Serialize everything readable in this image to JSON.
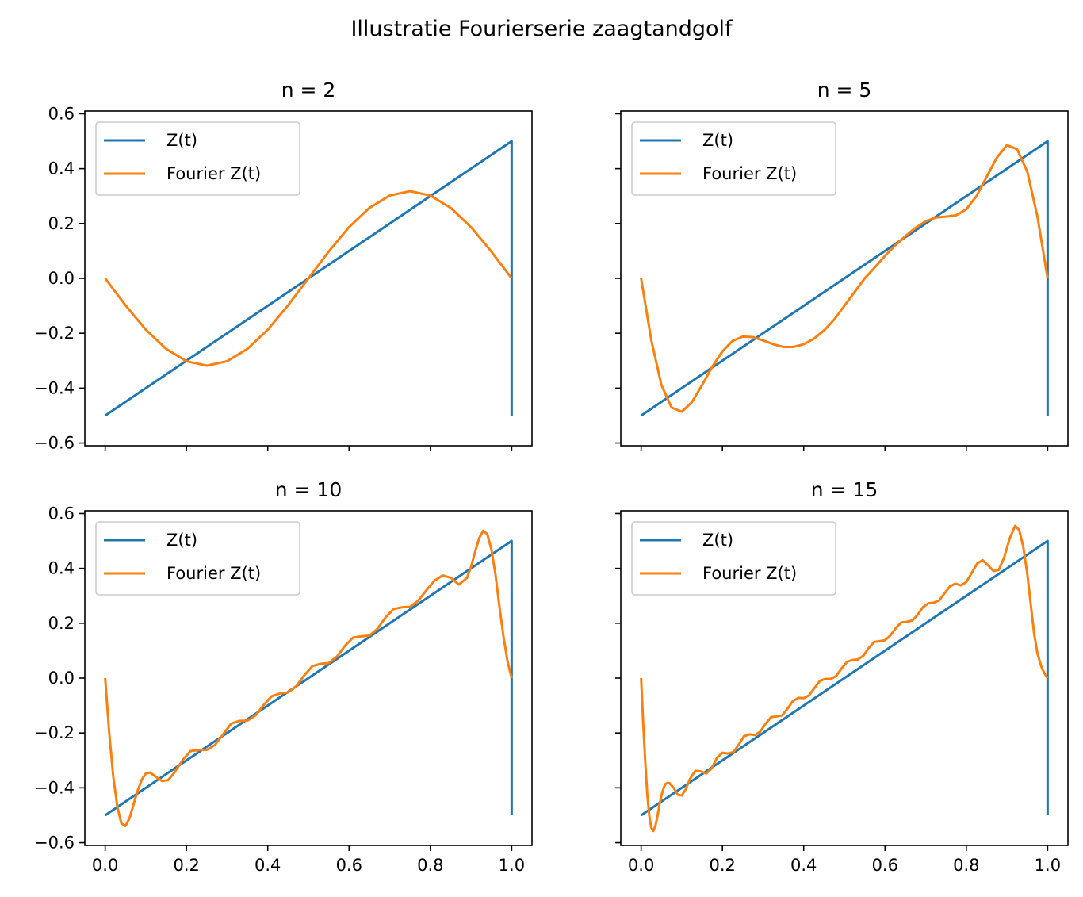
{
  "figure": {
    "title": "Illustratie Fourierserie zaagtandgolf",
    "colors": {
      "sawtooth": "#1f77b4",
      "fourier": "#ff7f0e"
    }
  },
  "chart_data": [
    {
      "type": "line",
      "title": "n = 2",
      "n_terms": 2,
      "xlabel": "",
      "ylabel": "",
      "xlim": [
        -0.05,
        1.05
      ],
      "ylim": [
        -0.61,
        0.61
      ],
      "xticks": [
        0.0,
        0.2,
        0.4,
        0.6,
        0.8,
        1.0
      ],
      "xtick_labels": [
        "",
        "",
        "",
        "",
        "",
        ""
      ],
      "yticks": [
        0.6,
        0.4,
        0.2,
        0.0,
        -0.2,
        -0.4,
        -0.6
      ],
      "ytick_labels": [
        "0.6",
        "0.4",
        "0.2",
        "0.0",
        "−0.2",
        "−0.4",
        "−0.6"
      ],
      "legend": {
        "position": "upper-left",
        "entries": [
          "Z(t)",
          "Fourier Z(t)"
        ]
      },
      "series": [
        {
          "name": "Z(t)",
          "x": [
            0,
            1,
            1
          ],
          "y": [
            -0.5,
            0.5,
            -0.5
          ]
        },
        {
          "name": "Fourier Z(t)",
          "x": [
            0.0,
            0.05,
            0.1,
            0.15,
            0.2,
            0.25,
            0.3,
            0.35,
            0.4,
            0.45,
            0.5,
            0.55,
            0.6,
            0.65,
            0.7,
            0.75,
            0.8,
            0.85,
            0.9,
            0.95,
            1.0
          ],
          "y": [
            0.0,
            -0.098,
            -0.187,
            -0.257,
            -0.302,
            -0.318,
            -0.302,
            -0.257,
            -0.187,
            -0.098,
            0.0,
            0.098,
            0.187,
            0.257,
            0.302,
            0.318,
            0.302,
            0.257,
            0.187,
            0.098,
            0.0
          ]
        }
      ]
    },
    {
      "type": "line",
      "title": "n = 5",
      "n_terms": 5,
      "xlabel": "",
      "ylabel": "",
      "xlim": [
        -0.05,
        1.05
      ],
      "ylim": [
        -0.61,
        0.61
      ],
      "xticks": [
        0.0,
        0.2,
        0.4,
        0.6,
        0.8,
        1.0
      ],
      "xtick_labels": [
        "",
        "",
        "",
        "",
        "",
        ""
      ],
      "yticks": [
        0.6,
        0.4,
        0.2,
        0.0,
        -0.2,
        -0.4,
        -0.6
      ],
      "ytick_labels": [
        "",
        "",
        "",
        "",
        "",
        "",
        ""
      ],
      "legend": {
        "position": "upper-left",
        "entries": [
          "Z(t)",
          "Fourier Z(t)"
        ]
      },
      "series": [
        {
          "name": "Z(t)",
          "x": [
            0,
            1,
            1
          ],
          "y": [
            -0.5,
            0.5,
            -0.5
          ]
        },
        {
          "name": "Fourier Z(t)",
          "x": [
            0.0,
            0.025,
            0.05,
            0.075,
            0.1,
            0.125,
            0.15,
            0.175,
            0.2,
            0.225,
            0.25,
            0.275,
            0.3,
            0.325,
            0.35,
            0.375,
            0.4,
            0.425,
            0.45,
            0.475,
            0.5,
            0.525,
            0.55,
            0.575,
            0.6,
            0.625,
            0.65,
            0.675,
            0.7,
            0.725,
            0.75,
            0.775,
            0.8,
            0.825,
            0.85,
            0.875,
            0.9,
            0.925,
            0.95,
            0.975,
            1.0
          ],
          "y": [
            0.0,
            -0.225,
            -0.389,
            -0.471,
            -0.486,
            -0.451,
            -0.389,
            -0.322,
            -0.266,
            -0.228,
            -0.212,
            -0.214,
            -0.226,
            -0.24,
            -0.25,
            -0.25,
            -0.24,
            -0.22,
            -0.19,
            -0.15,
            -0.1,
            -0.05,
            0.0,
            0.04,
            0.082,
            0.12,
            0.154,
            0.184,
            0.208,
            0.222,
            0.225,
            0.23,
            0.252,
            0.3,
            0.37,
            0.44,
            0.486,
            0.471,
            0.389,
            0.225,
            0.0
          ]
        }
      ]
    },
    {
      "type": "line",
      "title": "n = 10",
      "n_terms": 10,
      "xlabel": "",
      "ylabel": "",
      "xlim": [
        -0.05,
        1.05
      ],
      "ylim": [
        -0.61,
        0.61
      ],
      "xticks": [
        0.0,
        0.2,
        0.4,
        0.6,
        0.8,
        1.0
      ],
      "xtick_labels": [
        "0.0",
        "0.2",
        "0.4",
        "0.6",
        "0.8",
        "1.0"
      ],
      "yticks": [
        0.6,
        0.4,
        0.2,
        0.0,
        -0.2,
        -0.4,
        -0.6
      ],
      "ytick_labels": [
        "0.6",
        "0.4",
        "0.2",
        "0.0",
        "−0.2",
        "−0.4",
        "−0.6"
      ],
      "legend": {
        "position": "upper-left",
        "entries": [
          "Z(t)",
          "Fourier Z(t)"
        ]
      },
      "series": [
        {
          "name": "Z(t)",
          "x": [
            0,
            1,
            1
          ],
          "y": [
            -0.5,
            0.5,
            -0.5
          ]
        },
        {
          "name": "Fourier Z(t)",
          "x": [
            0.0,
            0.01,
            0.02,
            0.03,
            0.04,
            0.05,
            0.06,
            0.07,
            0.08,
            0.09,
            0.1,
            0.11,
            0.125,
            0.14,
            0.155,
            0.17,
            0.19,
            0.21,
            0.23,
            0.25,
            0.27,
            0.29,
            0.31,
            0.33,
            0.35,
            0.37,
            0.39,
            0.41,
            0.43,
            0.45,
            0.47,
            0.49,
            0.51,
            0.53,
            0.55,
            0.57,
            0.59,
            0.61,
            0.63,
            0.65,
            0.67,
            0.69,
            0.71,
            0.73,
            0.75,
            0.77,
            0.79,
            0.81,
            0.83,
            0.85,
            0.87,
            0.89,
            0.9,
            0.91,
            0.92,
            0.93,
            0.94,
            0.95,
            0.96,
            0.97,
            0.98,
            0.99,
            1.0
          ],
          "y": [
            0.0,
            -0.2,
            -0.36,
            -0.47,
            -0.53,
            -0.539,
            -0.51,
            -0.46,
            -0.41,
            -0.37,
            -0.348,
            -0.344,
            -0.36,
            -0.375,
            -0.372,
            -0.345,
            -0.3,
            -0.266,
            -0.262,
            -0.262,
            -0.244,
            -0.205,
            -0.166,
            -0.156,
            -0.155,
            -0.136,
            -0.098,
            -0.066,
            -0.056,
            -0.052,
            -0.03,
            0.01,
            0.044,
            0.052,
            0.055,
            0.078,
            0.118,
            0.148,
            0.152,
            0.155,
            0.18,
            0.222,
            0.252,
            0.258,
            0.26,
            0.282,
            0.32,
            0.355,
            0.374,
            0.366,
            0.341,
            0.365,
            0.405,
            0.46,
            0.51,
            0.537,
            0.525,
            0.47,
            0.38,
            0.26,
            0.15,
            0.06,
            0.0
          ]
        }
      ]
    },
    {
      "type": "line",
      "title": "n = 15",
      "n_terms": 15,
      "xlabel": "",
      "ylabel": "",
      "xlim": [
        -0.05,
        1.05
      ],
      "ylim": [
        -0.61,
        0.61
      ],
      "xticks": [
        0.0,
        0.2,
        0.4,
        0.6,
        0.8,
        1.0
      ],
      "xtick_labels": [
        "0.0",
        "0.2",
        "0.4",
        "0.6",
        "0.8",
        "1.0"
      ],
      "yticks": [
        0.6,
        0.4,
        0.2,
        0.0,
        -0.2,
        -0.4,
        -0.6
      ],
      "ytick_labels": [
        "",
        "",
        "",
        "",
        "",
        "",
        ""
      ],
      "legend": {
        "position": "upper-left",
        "entries": [
          "Z(t)",
          "Fourier Z(t)"
        ]
      },
      "series": [
        {
          "name": "Z(t)",
          "x": [
            0,
            1,
            1
          ],
          "y": [
            -0.5,
            0.5,
            -0.5
          ]
        },
        {
          "name": "Fourier Z(t)",
          "x": [
            0.0,
            0.005,
            0.01,
            0.015,
            0.02,
            0.025,
            0.03,
            0.035,
            0.04,
            0.045,
            0.05,
            0.055,
            0.06,
            0.065,
            0.07,
            0.08,
            0.09,
            0.1,
            0.11,
            0.12,
            0.133,
            0.147,
            0.16,
            0.173,
            0.187,
            0.2,
            0.213,
            0.227,
            0.24,
            0.253,
            0.267,
            0.28,
            0.293,
            0.307,
            0.32,
            0.333,
            0.347,
            0.36,
            0.373,
            0.387,
            0.4,
            0.413,
            0.427,
            0.44,
            0.453,
            0.467,
            0.48,
            0.493,
            0.507,
            0.52,
            0.533,
            0.547,
            0.56,
            0.573,
            0.587,
            0.6,
            0.613,
            0.627,
            0.64,
            0.653,
            0.667,
            0.68,
            0.693,
            0.707,
            0.72,
            0.733,
            0.747,
            0.76,
            0.773,
            0.787,
            0.8,
            0.813,
            0.827,
            0.84,
            0.853,
            0.867,
            0.88,
            0.893,
            0.907,
            0.92,
            0.93,
            0.94,
            0.95,
            0.96,
            0.967,
            0.975,
            0.985,
            0.993,
            1.0
          ],
          "y": [
            0.0,
            -0.16,
            -0.3,
            -0.42,
            -0.5,
            -0.545,
            -0.557,
            -0.54,
            -0.505,
            -0.463,
            -0.428,
            -0.402,
            -0.386,
            -0.382,
            -0.383,
            -0.4,
            -0.425,
            -0.428,
            -0.405,
            -0.368,
            -0.338,
            -0.34,
            -0.348,
            -0.33,
            -0.29,
            -0.272,
            -0.275,
            -0.27,
            -0.243,
            -0.212,
            -0.205,
            -0.208,
            -0.195,
            -0.165,
            -0.142,
            -0.14,
            -0.136,
            -0.112,
            -0.084,
            -0.072,
            -0.073,
            -0.063,
            -0.035,
            -0.01,
            -0.003,
            -0.003,
            0.008,
            0.035,
            0.06,
            0.066,
            0.068,
            0.082,
            0.11,
            0.132,
            0.135,
            0.138,
            0.155,
            0.183,
            0.203,
            0.205,
            0.21,
            0.23,
            0.258,
            0.273,
            0.275,
            0.283,
            0.31,
            0.335,
            0.344,
            0.338,
            0.35,
            0.383,
            0.418,
            0.43,
            0.412,
            0.39,
            0.395,
            0.44,
            0.51,
            0.555,
            0.54,
            0.48,
            0.38,
            0.25,
            0.16,
            0.09,
            0.04,
            0.015,
            0.0
          ]
        }
      ]
    }
  ]
}
